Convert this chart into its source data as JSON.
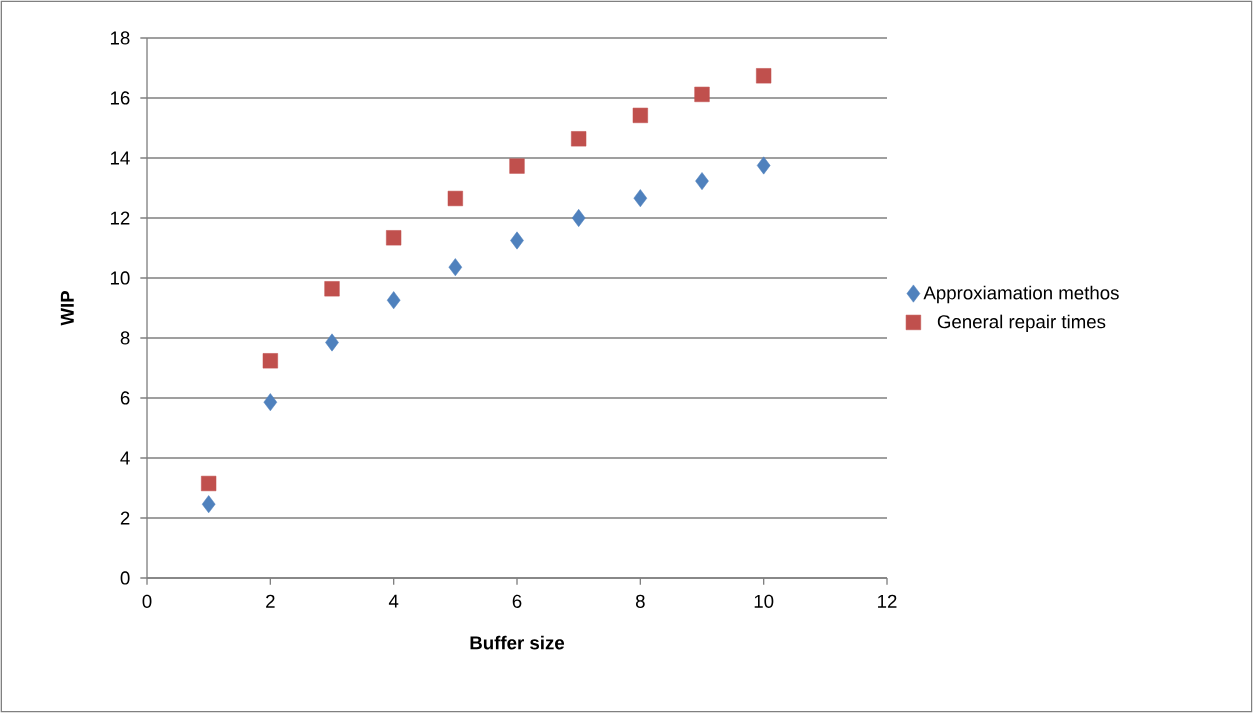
{
  "chart_data": {
    "type": "scatter",
    "xlabel": "Buffer size",
    "ylabel": "WIP",
    "x": [
      1,
      2,
      3,
      4,
      5,
      6,
      7,
      8,
      9,
      10
    ],
    "series": [
      {
        "name": "Approxiamation methos",
        "color": "#4f81bd",
        "marker": "diamond",
        "values": [
          2.46,
          5.86,
          7.85,
          9.26,
          10.36,
          11.25,
          12.0,
          12.66,
          13.23,
          13.75
        ]
      },
      {
        "name": "General repair times",
        "color": "#c0504d",
        "marker": "square",
        "values": [
          3.15,
          7.24,
          9.64,
          11.34,
          12.65,
          13.73,
          14.64,
          15.42,
          16.12,
          16.74
        ]
      }
    ],
    "xlim": [
      0,
      12
    ],
    "ylim": [
      0,
      18
    ],
    "xticks": [
      0,
      2,
      4,
      6,
      8,
      10,
      12
    ],
    "yticks": [
      0,
      2,
      4,
      6,
      8,
      10,
      12,
      14,
      16,
      18
    ],
    "grid": "y",
    "legend": "right"
  }
}
